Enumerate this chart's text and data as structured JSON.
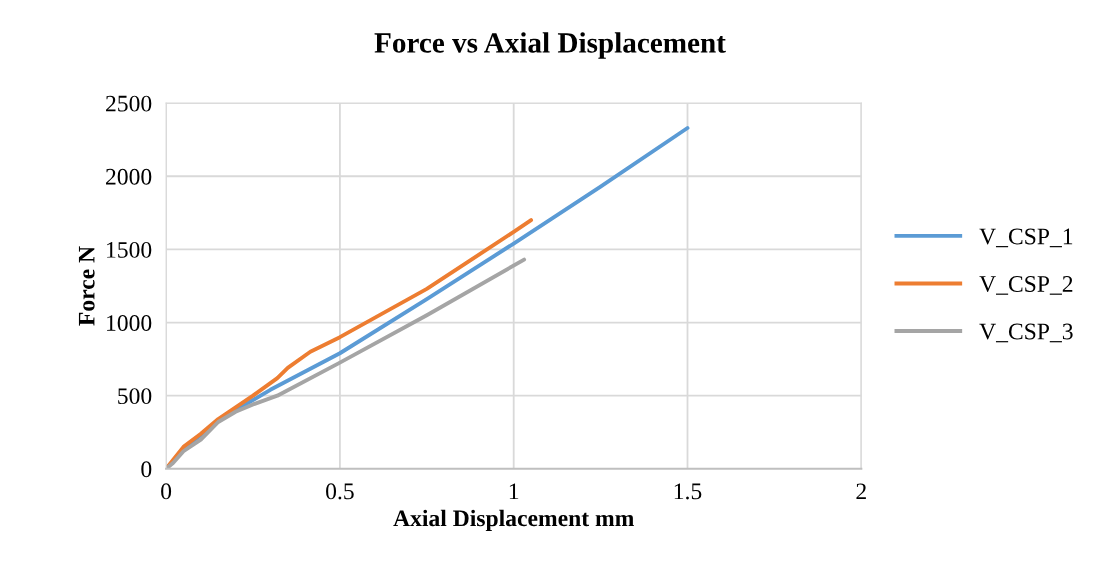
{
  "chart_data": {
    "type": "line",
    "title": "Force vs Axial Displacement",
    "xlabel": "Axial Displacement mm",
    "ylabel": "Force N",
    "xlim": [
      0,
      2
    ],
    "xticks": [
      0,
      0.5,
      1,
      1.5,
      2
    ],
    "ylim": [
      0,
      2500
    ],
    "yticks": [
      0,
      500,
      1000,
      1500,
      2000,
      2500
    ],
    "grid": true,
    "legend": "right",
    "marker": "none",
    "series": [
      {
        "name": "V_CSP_1",
        "color": "#5b9bd5",
        "x": [
          0,
          0.02,
          0.05,
          0.1,
          0.15,
          0.2,
          0.3,
          0.5,
          0.75,
          1.0,
          1.25,
          1.5
        ],
        "values": [
          0,
          50,
          140,
          230,
          330,
          400,
          540,
          790,
          1160,
          1540,
          1930,
          2330
        ]
      },
      {
        "name": "V_CSP_2",
        "color": "#ed7d31",
        "x": [
          0,
          0.02,
          0.05,
          0.1,
          0.15,
          0.2,
          0.25,
          0.32,
          0.35,
          0.415,
          0.5,
          0.75,
          1.0,
          1.05
        ],
        "values": [
          0,
          60,
          150,
          240,
          340,
          420,
          500,
          620,
          690,
          800,
          900,
          1230,
          1620,
          1700
        ]
      },
      {
        "name": "V_CSP_3",
        "color": "#a5a5a5",
        "x": [
          0,
          0.02,
          0.05,
          0.1,
          0.15,
          0.2,
          0.25,
          0.32,
          0.5,
          0.75,
          1.03
        ],
        "values": [
          0,
          40,
          120,
          200,
          320,
          390,
          440,
          500,
          726,
          1050,
          1430
        ]
      }
    ]
  }
}
